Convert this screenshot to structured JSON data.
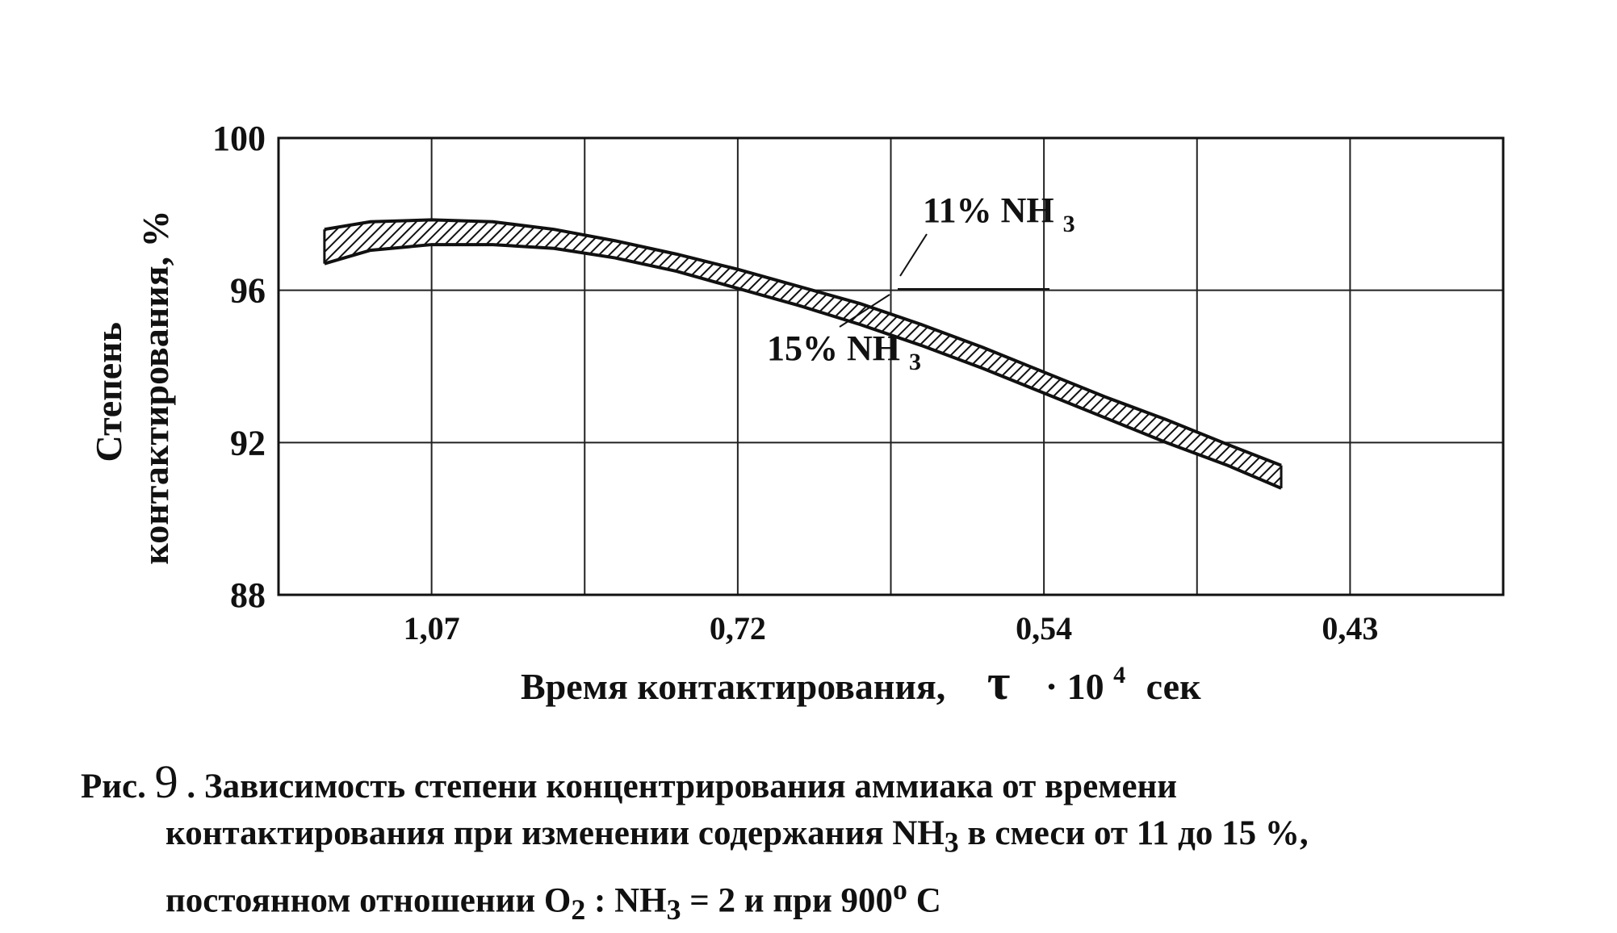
{
  "chart_data": {
    "type": "area",
    "ylabel_line1": "Степень",
    "ylabel_line2": "контактирования, %",
    "xlabel_text": "Время контактирования,",
    "xlabel_symbol": "τ",
    "xlabel_mult": "· 10",
    "xlabel_exp": "4",
    "xlabel_unit": "сек",
    "ylim": [
      88,
      100
    ],
    "yticks": [
      "100",
      "96",
      "92",
      "88"
    ],
    "xticks": [
      "1,07",
      "0,72",
      "0,54",
      "0,43"
    ],
    "grid": true,
    "series": [
      {
        "name": "11% NH3",
        "x": [
          0.3,
          0.6,
          1.0,
          1.4,
          1.8,
          2.2,
          2.6,
          3.0,
          3.4,
          3.8,
          4.2,
          4.6,
          5.0,
          5.4,
          5.8,
          6.2,
          6.55
        ],
        "y": [
          97.6,
          97.8,
          97.85,
          97.8,
          97.6,
          97.3,
          96.95,
          96.55,
          96.1,
          95.65,
          95.1,
          94.5,
          93.85,
          93.2,
          92.6,
          91.95,
          91.4
        ]
      },
      {
        "name": "15% NH3",
        "x": [
          0.3,
          0.6,
          1.0,
          1.4,
          1.8,
          2.2,
          2.6,
          3.0,
          3.4,
          3.8,
          4.2,
          4.6,
          5.0,
          5.4,
          5.8,
          6.2,
          6.55
        ],
        "y": [
          96.7,
          97.05,
          97.2,
          97.2,
          97.1,
          96.85,
          96.5,
          96.05,
          95.6,
          95.1,
          94.55,
          93.95,
          93.3,
          92.65,
          92.0,
          91.4,
          90.8
        ]
      }
    ],
    "annotations": [
      {
        "label_main": "11% NH",
        "label_sub": "3"
      },
      {
        "label_main": "15% NH",
        "label_sub": "3"
      }
    ]
  },
  "caption": {
    "prefix": "Рис.",
    "fig_number": "9",
    "line1": ". Зависимость степени  концентрирования аммиака от времени",
    "line2_a": "контактирования при изменении содержания  NH",
    "line2_sub": "3",
    "line2_b": "  в смеси от 11 до 15 %,",
    "line3_a": "постоянном  отношении O",
    "line3_sub1": "2",
    "line3_b": " :  NH",
    "line3_sub2": "3",
    "line3_c": " = 2 и при 900",
    "line3_sup": "o",
    "line3_d": "  C"
  }
}
